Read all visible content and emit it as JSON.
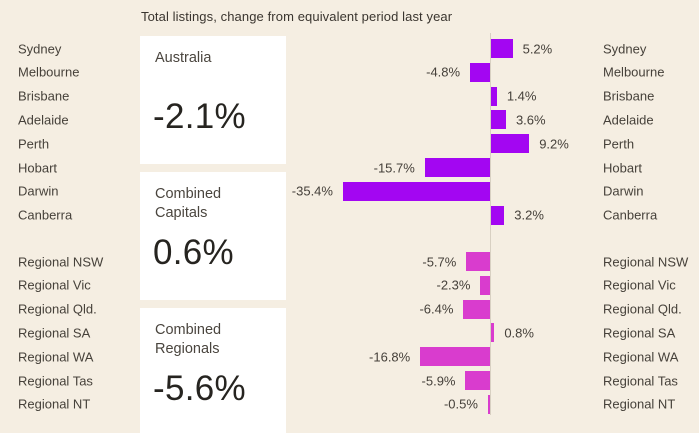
{
  "title": "Total listings, change from equivalent period last year",
  "summary_cards": [
    {
      "label": "Australia",
      "value": "-2.1%"
    },
    {
      "label": "Combined Capitals",
      "value": "0.6%"
    },
    {
      "label": "Combined Regionals",
      "value": "-5.6%"
    }
  ],
  "chart_data": {
    "type": "bar",
    "orientation": "horizontal",
    "title": "Total listings, change from equivalent period last year",
    "categories": [
      "Sydney",
      "Melbourne",
      "Brisbane",
      "Adelaide",
      "Perth",
      "Hobart",
      "Darwin",
      "Canberra",
      "Regional NSW",
      "Regional Vic",
      "Regional Qld.",
      "Regional SA",
      "Regional WA",
      "Regional Tas",
      "Regional NT"
    ],
    "values": [
      5.2,
      -4.8,
      1.4,
      3.6,
      9.2,
      -15.7,
      -35.4,
      3.2,
      -5.7,
      -2.3,
      -6.4,
      0.8,
      -16.8,
      -5.9,
      -0.5
    ],
    "value_labels": [
      "5.2%",
      "-4.8%",
      "1.4%",
      "3.6%",
      "9.2%",
      "-15.7%",
      "-35.4%",
      "3.2%",
      "-5.7%",
      "-2.3%",
      "-6.4%",
      "0.8%",
      "-16.8%",
      "-5.9%",
      "-0.5%"
    ],
    "groups": [
      "capital",
      "capital",
      "capital",
      "capital",
      "capital",
      "capital",
      "capital",
      "capital",
      "regional",
      "regional",
      "regional",
      "regional",
      "regional",
      "regional",
      "regional"
    ],
    "group_colors": {
      "capital": "#a306f2",
      "regional": "#d93cce"
    },
    "labels_shown_on_both_sides": true,
    "xlim": [
      -40,
      12
    ],
    "grid": false,
    "legend": false
  },
  "colors": {
    "background": "#f5eee2",
    "card_background": "#ffffff",
    "axis_line": "#d8d0c2",
    "text": "#46413a"
  }
}
